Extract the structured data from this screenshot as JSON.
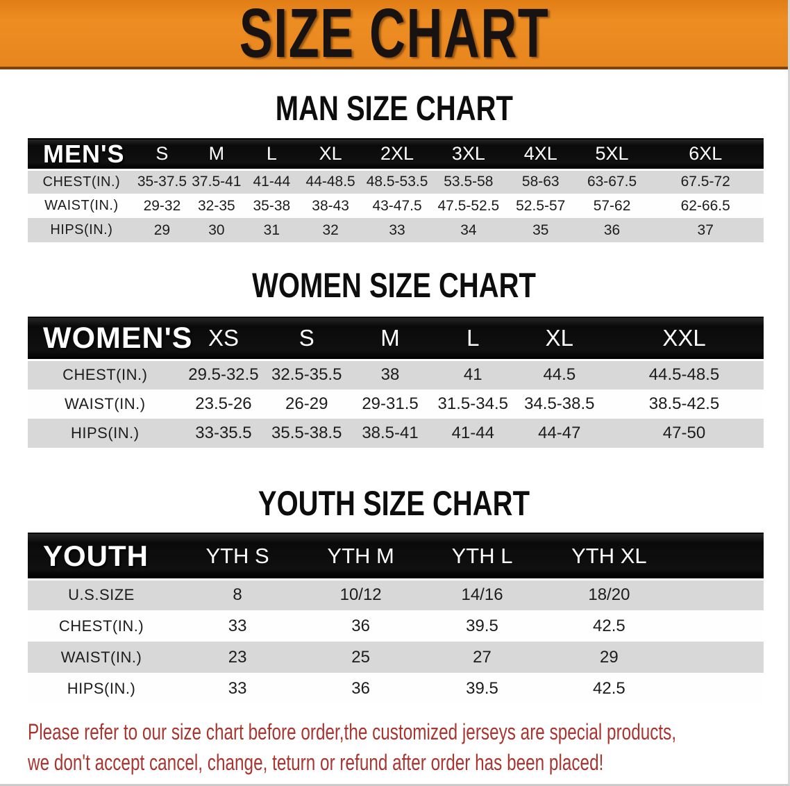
{
  "banner": {
    "title": "SIZE CHART"
  },
  "colors": {
    "banner_bg": "#e8861e",
    "banner_border": "#7e4210",
    "header_bar_bg": "#101010",
    "header_bar_text": "#ffffff",
    "row_shaded_bg": "#d8d8d8",
    "row_bg": "#fefefe",
    "notice_text": "#a93530"
  },
  "tables": [
    {
      "id": "men",
      "section_title": "MAN SIZE CHART",
      "corner_label": "MEN'S",
      "sizes": [
        "S",
        "M",
        "L",
        "XL",
        "2XL",
        "3XL",
        "4XL",
        "5XL",
        "6XL"
      ],
      "shaded_rows": [
        0,
        2
      ],
      "rows": [
        {
          "label": "CHEST(IN.)",
          "values": [
            "35-37.5",
            "37.5-41",
            "41-44",
            "44-48.5",
            "48.5-53.5",
            "53.5-58",
            "58-63",
            "63-67.5",
            "67.5-72"
          ]
        },
        {
          "label": "WAIST(IN.)",
          "values": [
            "29-32",
            "32-35",
            "35-38",
            "38-43",
            "43-47.5",
            "47.5-52.5",
            "52.5-57",
            "57-62",
            "62-66.5"
          ]
        },
        {
          "label": "HIPS(IN.)",
          "values": [
            "29",
            "30",
            "31",
            "32",
            "33",
            "34",
            "35",
            "36",
            "37"
          ]
        }
      ]
    },
    {
      "id": "women",
      "section_title": "WOMEN SIZE CHART",
      "corner_label": "WOMEN'S",
      "sizes": [
        "XS",
        "S",
        "M",
        "L",
        "XL",
        "XXL"
      ],
      "shaded_rows": [
        0,
        2
      ],
      "rows": [
        {
          "label": "CHEST(IN.)",
          "values": [
            "29.5-32.5",
            "32.5-35.5",
            "38",
            "41",
            "44.5",
            "44.5-48.5"
          ]
        },
        {
          "label": "WAIST(IN.)",
          "values": [
            "23.5-26",
            "26-29",
            "29-31.5",
            "31.5-34.5",
            "34.5-38.5",
            "38.5-42.5"
          ]
        },
        {
          "label": "HIPS(IN.)",
          "values": [
            "33-35.5",
            "35.5-38.5",
            "38.5-41",
            "41-44",
            "44-47",
            "47-50"
          ]
        }
      ]
    },
    {
      "id": "youth",
      "section_title": "YOUTH SIZE CHART",
      "corner_label": "YOUTH",
      "sizes": [
        "YTH S",
        "YTH M",
        "YTH L",
        "YTH XL"
      ],
      "shaded_rows": [
        0,
        2
      ],
      "rows": [
        {
          "label": "U.S.SIZE",
          "values": [
            "8",
            "10/12",
            "14/16",
            "18/20"
          ]
        },
        {
          "label": "CHEST(IN.)",
          "values": [
            "33",
            "36",
            "39.5",
            "42.5"
          ]
        },
        {
          "label": "WAIST(IN.)",
          "values": [
            "23",
            "25",
            "27",
            "29"
          ]
        },
        {
          "label": "HIPS(IN.)",
          "values": [
            "33",
            "36",
            "39.5",
            "42.5"
          ]
        }
      ]
    }
  ],
  "notice": {
    "line1": "Please refer to our size chart before order,the customized jerseys are special products,",
    "line2": "we don't accept cancel, change, teturn or refund after order has been placed!"
  }
}
